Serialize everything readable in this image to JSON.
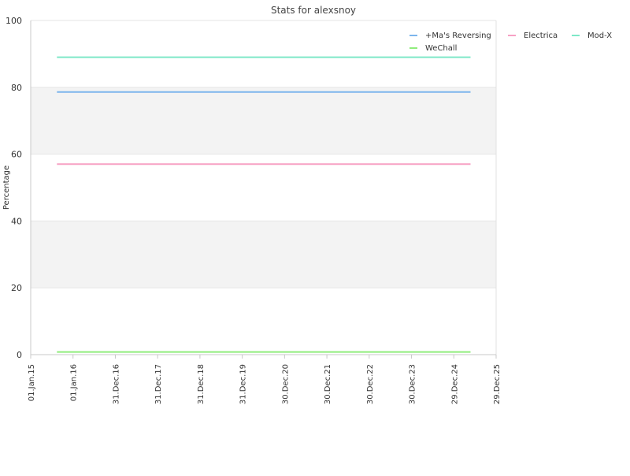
{
  "chart_data": {
    "type": "line",
    "title": "Stats for alexsnoy",
    "xlabel": "",
    "ylabel": "Percentage",
    "ylim": [
      0,
      100
    ],
    "y_ticks": [
      0,
      20,
      40,
      60,
      80,
      100
    ],
    "x_range": [
      "2015-01-01",
      "2025-12-29"
    ],
    "x_ticks": [
      {
        "date": "2015-01-01",
        "label": "01.Jan.15"
      },
      {
        "date": "2016-01-01",
        "label": "01.Jan.16"
      },
      {
        "date": "2016-12-31",
        "label": "31.Dec.16"
      },
      {
        "date": "2017-12-31",
        "label": "31.Dec.17"
      },
      {
        "date": "2018-12-31",
        "label": "31.Dec.18"
      },
      {
        "date": "2019-12-31",
        "label": "31.Dec.19"
      },
      {
        "date": "2020-12-30",
        "label": "30.Dec.20"
      },
      {
        "date": "2021-12-30",
        "label": "30.Dec.21"
      },
      {
        "date": "2022-12-30",
        "label": "30.Dec.22"
      },
      {
        "date": "2023-12-30",
        "label": "30.Dec.23"
      },
      {
        "date": "2024-12-29",
        "label": "29.Dec.24"
      },
      {
        "date": "2025-12-29",
        "label": "29.Dec.25"
      }
    ],
    "x": [
      "2015-08-15",
      "2025-05-22"
    ],
    "series": [
      {
        "name": "+Ma's Reversing",
        "color": "#7cb5ec",
        "values": [
          78.6,
          78.6
        ]
      },
      {
        "name": "Electrica",
        "color": "#f7a1c4",
        "values": [
          57.0,
          57.0
        ]
      },
      {
        "name": "Mod-X",
        "color": "#7ee8c8",
        "values": [
          89.0,
          89.0
        ]
      },
      {
        "name": "WeChall",
        "color": "#90ed7d",
        "values": [
          0.8,
          0.8
        ]
      }
    ],
    "grid": true,
    "band_color": "#f3f3f3",
    "legend_position": "top-right"
  }
}
